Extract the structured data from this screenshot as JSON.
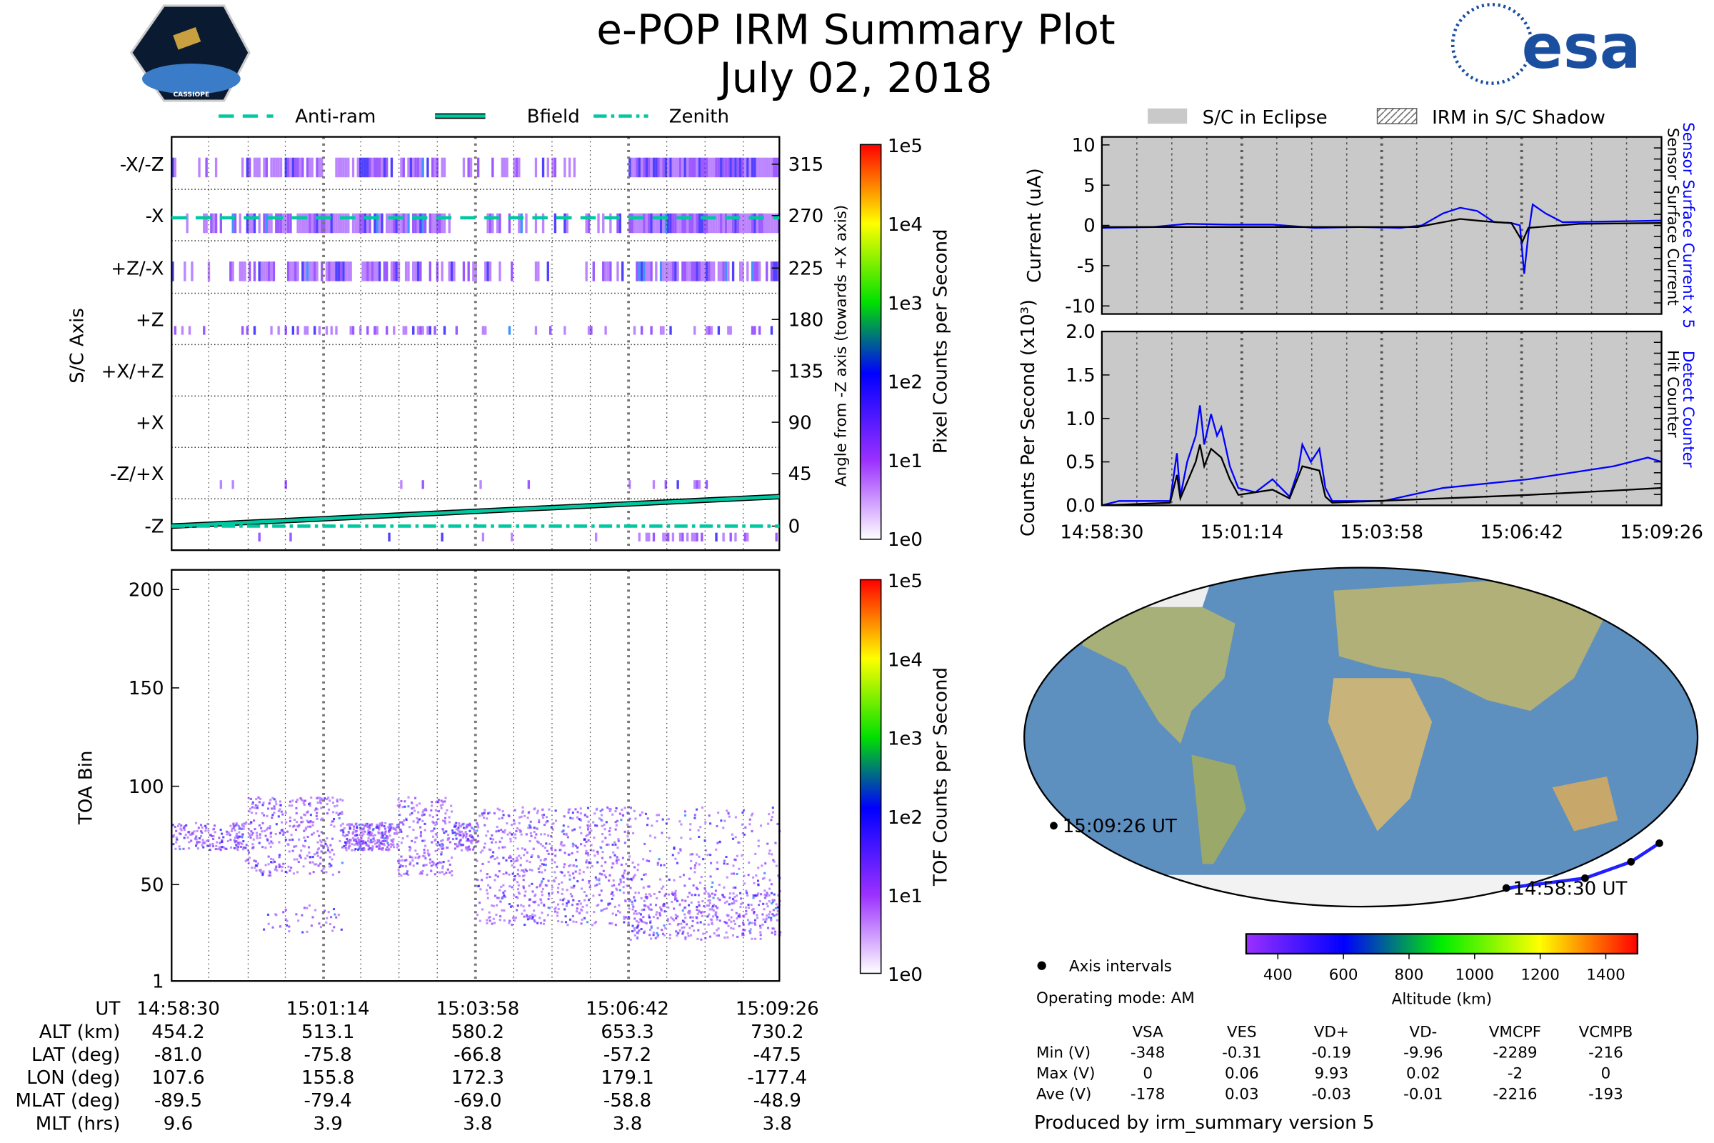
{
  "header": {
    "title": "e-POP IRM Summary Plot",
    "date": "July 02, 2018",
    "mission_logo_text": "CASSIOPE",
    "agency_logo_text": "esa"
  },
  "legend_top": {
    "items": [
      "Anti-ram",
      "Bfield",
      "Zenith"
    ],
    "line_color": "#00c8a0"
  },
  "legend_right": {
    "items": [
      "S/C in Eclipse",
      "IRM in S/C Shadow"
    ]
  },
  "chart_data": [
    {
      "type": "heatmap",
      "name": "pixel-spectrogram",
      "ylabel": "S/C Axis",
      "ylabel_right": "Angle from -Z axis (towards +X axis)",
      "row_labels": [
        "-X/-Z",
        "-X",
        "+Z/-X",
        "+Z",
        "+X/+Z",
        "+X",
        "-Z/+X",
        "-Z"
      ],
      "right_ticks": [
        "315",
        "270",
        "225",
        "180",
        "135",
        "90",
        "45",
        "0"
      ],
      "colorbar": {
        "label": "Pixel Counts per Second",
        "ticks": [
          "1e5",
          "1e4",
          "1e3",
          "1e2",
          "1e1",
          "1e0"
        ]
      }
    },
    {
      "type": "heatmap",
      "name": "tof-spectrogram",
      "ylabel": "TOA Bin",
      "yticks": [
        "200",
        "150",
        "100",
        "50",
        "1"
      ],
      "ylim": [
        1,
        210
      ],
      "colorbar": {
        "label": "TOF Counts per Second",
        "ticks": [
          "1e5",
          "1e4",
          "1e3",
          "1e2",
          "1e1",
          "1e0"
        ]
      }
    },
    {
      "type": "line",
      "name": "sensor-current",
      "ylabel": "Current (uA)",
      "yticks": [
        "10",
        "5",
        "0",
        "-5",
        "-10"
      ],
      "ylim": [
        -11,
        11
      ],
      "xlim_seconds": [
        0,
        656
      ],
      "series": [
        {
          "name": "Sensor Surface Current x 5",
          "color": "#0000ff",
          "points": [
            [
              0,
              -0.3
            ],
            [
              60,
              -0.2
            ],
            [
              100,
              0.2
            ],
            [
              150,
              0.1
            ],
            [
              200,
              0.1
            ],
            [
              250,
              -0.3
            ],
            [
              300,
              -0.2
            ],
            [
              350,
              -0.3
            ],
            [
              375,
              0
            ],
            [
              400,
              1.5
            ],
            [
              420,
              2.2
            ],
            [
              440,
              1.8
            ],
            [
              460,
              0.4
            ],
            [
              480,
              0.3
            ],
            [
              490,
              0
            ],
            [
              495,
              -6
            ],
            [
              500,
              -1
            ],
            [
              505,
              2.6
            ],
            [
              520,
              1.5
            ],
            [
              540,
              0.4
            ],
            [
              600,
              0.5
            ],
            [
              656,
              0.6
            ]
          ]
        },
        {
          "name": "Sensor Surface Current",
          "color": "#000000",
          "points": [
            [
              0,
              -0.2
            ],
            [
              370,
              -0.2
            ],
            [
              400,
              0.4
            ],
            [
              420,
              0.8
            ],
            [
              450,
              0.5
            ],
            [
              480,
              0.3
            ],
            [
              493,
              -2
            ],
            [
              500,
              -0.3
            ],
            [
              560,
              0.2
            ],
            [
              656,
              0.3
            ]
          ]
        }
      ]
    },
    {
      "type": "line",
      "name": "counts-per-second",
      "ylabel": "Counts Per Second (x10³)",
      "yticks": [
        "2.0",
        "1.5",
        "1.0",
        "0.5",
        "0.0"
      ],
      "ylim": [
        0,
        2.0
      ],
      "xticks": [
        "14:58:30",
        "15:01:14",
        "15:03:58",
        "15:06:42",
        "15:09:26"
      ],
      "series": [
        {
          "name": "Detect Counter",
          "color": "#0000ff",
          "points": [
            [
              0,
              0
            ],
            [
              20,
              0.05
            ],
            [
              80,
              0.05
            ],
            [
              88,
              0.6
            ],
            [
              92,
              0.1
            ],
            [
              100,
              0.5
            ],
            [
              110,
              0.8
            ],
            [
              115,
              1.15
            ],
            [
              120,
              0.7
            ],
            [
              128,
              1.05
            ],
            [
              135,
              0.8
            ],
            [
              140,
              0.9
            ],
            [
              150,
              0.45
            ],
            [
              160,
              0.2
            ],
            [
              180,
              0.15
            ],
            [
              200,
              0.3
            ],
            [
              220,
              0.1
            ],
            [
              230,
              0.4
            ],
            [
              235,
              0.7
            ],
            [
              245,
              0.5
            ],
            [
              255,
              0.65
            ],
            [
              262,
              0.2
            ],
            [
              270,
              0.05
            ],
            [
              330,
              0.05
            ],
            [
              400,
              0.2
            ],
            [
              500,
              0.3
            ],
            [
              600,
              0.45
            ],
            [
              640,
              0.55
            ],
            [
              656,
              0.5
            ]
          ]
        },
        {
          "name": "Hit Counter",
          "color": "#000000",
          "points": [
            [
              0,
              0
            ],
            [
              80,
              0.03
            ],
            [
              88,
              0.35
            ],
            [
              92,
              0.08
            ],
            [
              110,
              0.5
            ],
            [
              115,
              0.7
            ],
            [
              120,
              0.45
            ],
            [
              128,
              0.65
            ],
            [
              140,
              0.55
            ],
            [
              150,
              0.3
            ],
            [
              160,
              0.12
            ],
            [
              200,
              0.18
            ],
            [
              220,
              0.08
            ],
            [
              235,
              0.45
            ],
            [
              255,
              0.4
            ],
            [
              262,
              0.1
            ],
            [
              270,
              0.03
            ],
            [
              400,
              0.08
            ],
            [
              500,
              0.12
            ],
            [
              600,
              0.17
            ],
            [
              656,
              0.2
            ]
          ]
        }
      ]
    }
  ],
  "map": {
    "start_label": "14:58:30 UT",
    "end_label": "15:09:26 UT",
    "legend": "Axis intervals",
    "operating_mode": "Operating mode: AM",
    "colorbar": {
      "label": "Altitude (km)",
      "ticks": [
        "400",
        "600",
        "800",
        "1000",
        "1200",
        "1400"
      ]
    }
  },
  "ephemeris": {
    "row_labels": [
      "UT",
      "ALT (km)",
      "LAT (deg)",
      "LON (deg)",
      "MLAT (deg)",
      "MLT (hrs)"
    ],
    "columns": [
      [
        "14:58:30",
        "454.2",
        "-81.0",
        "107.6",
        "-89.5",
        "9.6"
      ],
      [
        "15:01:14",
        "513.1",
        "-75.8",
        "155.8",
        "-79.4",
        "3.9"
      ],
      [
        "15:03:58",
        "580.2",
        "-66.8",
        "172.3",
        "-69.0",
        "3.8"
      ],
      [
        "15:06:42",
        "653.3",
        "-57.2",
        "179.1",
        "-58.8",
        "3.8"
      ],
      [
        "15:09:26",
        "730.2",
        "-47.5",
        "-177.4",
        "-48.9",
        "3.8"
      ]
    ]
  },
  "voltages": {
    "headers": [
      "VSA",
      "VES",
      "VD+",
      "VD-",
      "VMCPF",
      "VCMPB"
    ],
    "rows": [
      {
        "label": "Min (V)",
        "values": [
          "-348",
          "-0.31",
          "-0.19",
          "-9.96",
          "-2289",
          "-216"
        ]
      },
      {
        "label": "Max (V)",
        "values": [
          "0",
          "0.06",
          "9.93",
          "0.02",
          "-2",
          "0"
        ]
      },
      {
        "label": "Ave (V)",
        "values": [
          "-178",
          "0.03",
          "-0.03",
          "-0.01",
          "-2216",
          "-193"
        ]
      }
    ]
  },
  "footer": "Produced by irm_summary version 5"
}
